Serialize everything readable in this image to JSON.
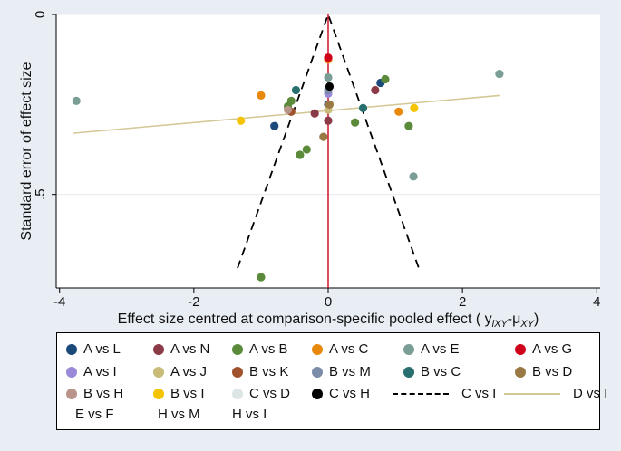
{
  "chart_data": {
    "type": "scatter",
    "title": "",
    "xlabel": "Effect size centred at comparison-specific pooled effect ( y",
    "xlabel_sub1": "iXY",
    "xlabel_mid": "-μ",
    "xlabel_sub2": "XY",
    "xlabel_end": ")",
    "ylabel": "Standard error of effect size",
    "xlim": [
      -4.05,
      4.05
    ],
    "ylim": [
      0,
      0.76
    ],
    "y_reversed": true,
    "xticks": [
      -4,
      -2,
      0,
      2,
      4
    ],
    "yticks": [
      0,
      0.5
    ],
    "ytick_labels": [
      "0",
      ".5"
    ],
    "grid": "horizontal",
    "colors": {
      "background": "#e8eef4",
      "plot_background": "#ffffff",
      "grid": "#e6ebf0",
      "red_line": "#d0021b",
      "funnel": "#000000",
      "fit_line": "#d4c898"
    },
    "reference_line": {
      "x": 0
    },
    "funnel": [
      [
        -1.35,
        0.705
      ],
      [
        0,
        0
      ],
      [
        1.35,
        0.705
      ]
    ],
    "fit_line": [
      [
        -3.8,
        0.33
      ],
      [
        2.55,
        0.225
      ]
    ],
    "points": [
      {
        "x": -0.8,
        "y": 0.31,
        "color": "#1a4a7a",
        "group": "A vs L"
      },
      {
        "x": 0.78,
        "y": 0.19,
        "color": "#1a4a7a",
        "group": "A vs L"
      },
      {
        "x": 0.0,
        "y": 0.25,
        "color": "#1a4a7a",
        "group": "A vs L"
      },
      {
        "x": -0.2,
        "y": 0.275,
        "color": "#8b3a48",
        "group": "A vs N"
      },
      {
        "x": 0.7,
        "y": 0.21,
        "color": "#8b3a48",
        "group": "A vs N"
      },
      {
        "x": 0.0,
        "y": 0.295,
        "color": "#8b3a48",
        "group": "A vs N"
      },
      {
        "x": -0.6,
        "y": 0.255,
        "color": "#5a8a3a",
        "group": "A vs B"
      },
      {
        "x": -0.55,
        "y": 0.24,
        "color": "#5a8a3a",
        "group": "A vs B"
      },
      {
        "x": -0.42,
        "y": 0.39,
        "color": "#5a8a3a",
        "group": "A vs B"
      },
      {
        "x": -0.32,
        "y": 0.375,
        "color": "#5a8a3a",
        "group": "A vs B"
      },
      {
        "x": 0.4,
        "y": 0.3,
        "color": "#5a8a3a",
        "group": "A vs B"
      },
      {
        "x": 0.85,
        "y": 0.18,
        "color": "#5a8a3a",
        "group": "A vs B"
      },
      {
        "x": 1.2,
        "y": 0.31,
        "color": "#5a8a3a",
        "group": "A vs B"
      },
      {
        "x": -1.0,
        "y": 0.73,
        "color": "#5a8a3a",
        "group": "A vs B"
      },
      {
        "x": -1.0,
        "y": 0.225,
        "color": "#e8890c",
        "group": "A vs C"
      },
      {
        "x": 0.0,
        "y": 0.125,
        "color": "#e8890c",
        "group": "A vs C"
      },
      {
        "x": 1.05,
        "y": 0.27,
        "color": "#e8890c",
        "group": "A vs C"
      },
      {
        "x": -3.75,
        "y": 0.24,
        "color": "#7a9e96",
        "group": "A vs E"
      },
      {
        "x": 2.55,
        "y": 0.165,
        "color": "#7a9e96",
        "group": "A vs E"
      },
      {
        "x": 1.27,
        "y": 0.45,
        "color": "#7a9e96",
        "group": "A vs E"
      },
      {
        "x": 0.0,
        "y": 0.175,
        "color": "#7a9e96",
        "group": "A vs E"
      },
      {
        "x": 0.0,
        "y": 0.12,
        "color": "#d0021b",
        "group": "A vs G"
      },
      {
        "x": 0.0,
        "y": 0.22,
        "color": "#9a88d8",
        "group": "A vs I"
      },
      {
        "x": 0.0,
        "y": 0.265,
        "color": "#c8bc78",
        "group": "A vs J"
      },
      {
        "x": -0.55,
        "y": 0.27,
        "color": "#a0522d",
        "group": "B vs K"
      },
      {
        "x": 0.0,
        "y": 0.21,
        "color": "#7a8ca8",
        "group": "B vs M"
      },
      {
        "x": -0.48,
        "y": 0.21,
        "color": "#2a6f6f",
        "group": "B vs C"
      },
      {
        "x": 0.52,
        "y": 0.26,
        "color": "#2a6f6f",
        "group": "B vs C"
      },
      {
        "x": -0.07,
        "y": 0.34,
        "color": "#9a7a44",
        "group": "B vs D"
      },
      {
        "x": 0.02,
        "y": 0.25,
        "color": "#9a7a44",
        "group": "B vs D"
      },
      {
        "x": -0.6,
        "y": 0.265,
        "color": "#b8948a",
        "group": "B vs H"
      },
      {
        "x": -1.3,
        "y": 0.295,
        "color": "#f5c400",
        "group": "B vs I"
      },
      {
        "x": 1.28,
        "y": 0.26,
        "color": "#f5c400",
        "group": "B vs I"
      },
      {
        "x": 0.02,
        "y": 0.2,
        "color": "#000000",
        "group": "C vs H"
      }
    ],
    "legend": {
      "placement": "bottom",
      "rows": [
        [
          {
            "label": "A vs L",
            "color": "#1a4a7a",
            "kind": "dot"
          },
          {
            "label": "A vs N",
            "color": "#8b3a48",
            "kind": "dot"
          },
          {
            "label": "A vs B",
            "color": "#5a8a3a",
            "kind": "dot"
          },
          {
            "label": "A vs C",
            "color": "#e8890c",
            "kind": "dot"
          },
          {
            "label": "A vs E",
            "color": "#7a9e96",
            "kind": "dot"
          },
          {
            "label": "A vs G",
            "color": "#d0021b",
            "kind": "dot"
          }
        ],
        [
          {
            "label": "A vs I",
            "color": "#9a88d8",
            "kind": "dot"
          },
          {
            "label": "A vs J",
            "color": "#c8bc78",
            "kind": "dot"
          },
          {
            "label": "B vs K",
            "color": "#a0522d",
            "kind": "dot"
          },
          {
            "label": "B vs M",
            "color": "#7a8ca8",
            "kind": "dot"
          },
          {
            "label": "B vs C",
            "color": "#2a6f6f",
            "kind": "dot"
          },
          {
            "label": "B vs D",
            "color": "#9a7a44",
            "kind": "dot"
          }
        ],
        [
          {
            "label": "B vs H",
            "color": "#b8948a",
            "kind": "dot"
          },
          {
            "label": "B vs I",
            "color": "#f5c400",
            "kind": "dot"
          },
          {
            "label": "C vs D",
            "color": "#dde6e6",
            "kind": "dot"
          },
          {
            "label": "C vs H",
            "color": "#000000",
            "kind": "dot"
          },
          {
            "label": "C vs I",
            "color": "#000000",
            "kind": "dash"
          },
          {
            "label": "D vs I",
            "color": "#d4c898",
            "kind": "solid"
          }
        ],
        [
          {
            "label": "E vs F",
            "color": "",
            "kind": "none"
          },
          {
            "label": "H vs M",
            "color": "",
            "kind": "none"
          },
          {
            "label": "H vs I",
            "color": "",
            "kind": "none"
          }
        ]
      ]
    }
  }
}
